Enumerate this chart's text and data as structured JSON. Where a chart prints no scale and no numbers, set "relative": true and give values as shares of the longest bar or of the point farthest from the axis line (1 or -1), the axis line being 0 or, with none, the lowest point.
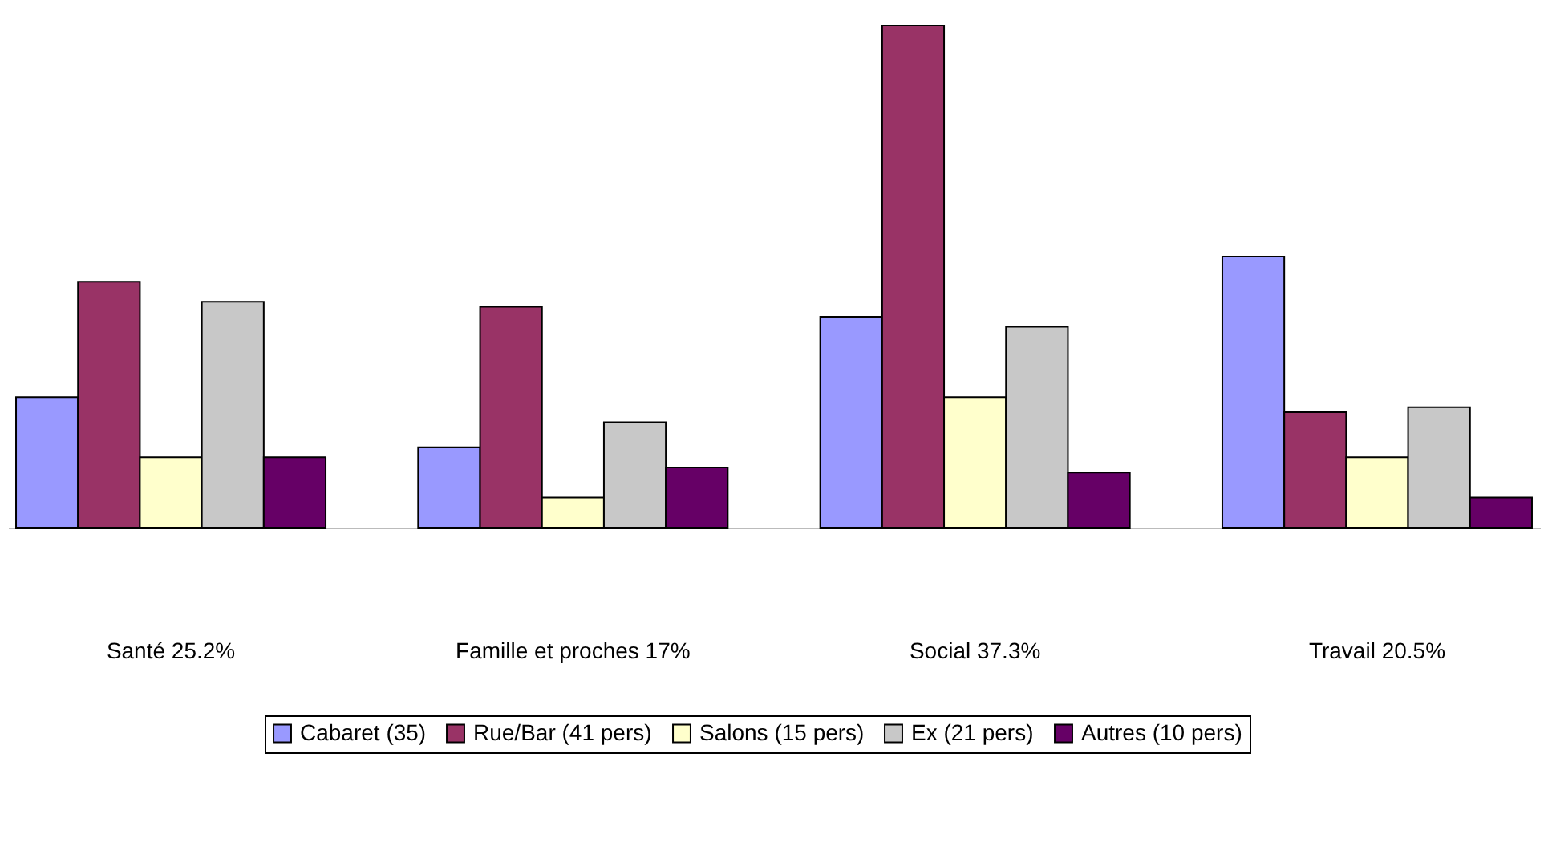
{
  "chart_data": {
    "type": "bar",
    "relative": true,
    "categories": [
      "Santé 25.2%",
      "Famille et proches 17%",
      "Social 37.3%",
      "Travail 20.5%"
    ],
    "series": [
      {
        "name": "Cabaret (35)",
        "color": "#9999ff",
        "values": [
          0.26,
          0.16,
          0.42,
          0.54
        ]
      },
      {
        "name": "Rue/Bar (41 pers)",
        "color": "#993366",
        "values": [
          0.49,
          0.44,
          1,
          0.23
        ]
      },
      {
        "name": "Salons (15 pers)",
        "color": "#ffffcc",
        "values": [
          0.14,
          0.06,
          0.26,
          0.14
        ]
      },
      {
        "name": "Ex (21 pers)",
        "color": "#c8c8c8",
        "values": [
          0.45,
          0.21,
          0.4,
          0.24
        ]
      },
      {
        "name": "Autres (10 pers)",
        "color": "#660066",
        "values": [
          0.14,
          0.12,
          0.11,
          0.06
        ]
      }
    ],
    "legend": "bottom",
    "grid": false
  }
}
